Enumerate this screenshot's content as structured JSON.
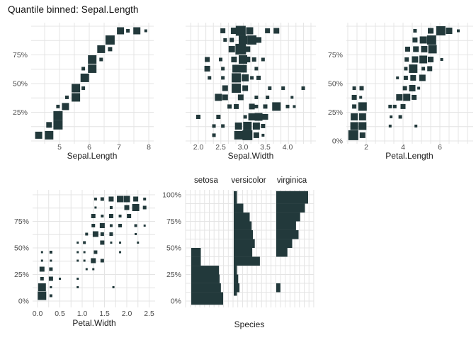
{
  "title": "Quantile binned: Sepal.Length",
  "colors": {
    "marker": "#22393B",
    "grid": "#E4E4E4",
    "tick_text": "#4D4D4D",
    "axis_text": "#1A1A1A",
    "background": "#FFFFFF"
  },
  "chart_data": [
    {
      "type": "scatter",
      "note": "points are [x_value, sepal_length_quantile_pct, marker_size_px]; marker size encodes bin count",
      "xlabel": "Sepal.Length",
      "x_tick_labels": [
        "5",
        "6",
        "7",
        "8"
      ],
      "x_tick_values": [
        5,
        6,
        7,
        8
      ],
      "y_tick_labels": [
        "25%",
        "50%",
        "75%"
      ],
      "y_tick_values": [
        25,
        50,
        75
      ],
      "x_range": [
        4.3,
        7.9
      ],
      "y_range_pct": [
        0,
        100
      ],
      "points": [
        [
          4.3,
          5,
          10
        ],
        [
          4.65,
          5,
          12
        ],
        [
          4.65,
          14,
          8
        ],
        [
          4.95,
          14,
          13
        ],
        [
          4.95,
          22,
          13
        ],
        [
          4.95,
          30,
          5
        ],
        [
          5.2,
          30,
          10
        ],
        [
          5.25,
          38,
          5
        ],
        [
          5.55,
          38,
          12
        ],
        [
          5.55,
          46,
          12
        ],
        [
          5.8,
          46,
          5
        ],
        [
          5.85,
          55,
          12
        ],
        [
          5.8,
          63,
          5
        ],
        [
          6.1,
          63,
          12
        ],
        [
          6.1,
          71,
          12
        ],
        [
          6.4,
          71,
          5
        ],
        [
          6.4,
          80,
          11
        ],
        [
          6.7,
          80,
          6
        ],
        [
          6.7,
          88,
          13
        ],
        [
          7.05,
          96,
          10
        ],
        [
          7.3,
          96,
          5
        ],
        [
          7.6,
          96,
          10
        ],
        [
          7.9,
          96,
          4
        ]
      ]
    },
    {
      "type": "scatter",
      "xlabel": "Sepal.Width",
      "x_tick_labels": [
        "2.0",
        "2.5",
        "3.0",
        "3.5",
        "4.0"
      ],
      "x_tick_values": [
        2.0,
        2.5,
        3.0,
        3.5,
        4.0
      ],
      "y_tick_labels": [],
      "y_tick_values": [],
      "x_range": [
        2.0,
        4.4
      ],
      "y_range_pct": [
        0,
        100
      ],
      "points": [
        [
          2.35,
          5,
          5
        ],
        [
          2.9,
          5,
          12
        ],
        [
          3.1,
          5,
          14
        ],
        [
          3.3,
          5,
          8
        ],
        [
          3.45,
          5,
          4
        ],
        [
          2.35,
          13,
          5
        ],
        [
          2.55,
          13,
          5
        ],
        [
          2.9,
          13,
          10
        ],
        [
          3.1,
          13,
          12
        ],
        [
          3.3,
          13,
          10
        ],
        [
          3.45,
          13,
          6
        ],
        [
          2.0,
          21,
          6
        ],
        [
          2.45,
          21,
          6
        ],
        [
          3.05,
          21,
          5
        ],
        [
          3.2,
          21,
          10
        ],
        [
          3.35,
          21,
          11
        ],
        [
          3.5,
          21,
          8
        ],
        [
          2.7,
          30,
          6
        ],
        [
          2.85,
          30,
          7
        ],
        [
          3.2,
          30,
          8
        ],
        [
          3.3,
          30,
          5
        ],
        [
          3.5,
          30,
          6
        ],
        [
          3.75,
          30,
          12
        ],
        [
          4.0,
          30,
          5
        ],
        [
          4.15,
          30,
          4
        ],
        [
          2.45,
          38,
          10
        ],
        [
          2.6,
          38,
          8
        ],
        [
          2.95,
          38,
          8
        ],
        [
          3.3,
          38,
          5
        ],
        [
          3.55,
          38,
          5
        ],
        [
          4.1,
          38,
          4
        ],
        [
          2.6,
          46,
          8
        ],
        [
          2.85,
          46,
          13
        ],
        [
          3.05,
          46,
          8
        ],
        [
          3.6,
          46,
          5
        ],
        [
          3.9,
          46,
          5
        ],
        [
          4.35,
          46,
          5
        ],
        [
          2.25,
          55,
          5
        ],
        [
          2.55,
          55,
          5
        ],
        [
          2.85,
          55,
          13
        ],
        [
          3.05,
          55,
          10
        ],
        [
          3.2,
          55,
          5
        ],
        [
          3.35,
          55,
          6
        ],
        [
          2.2,
          63,
          8
        ],
        [
          2.55,
          63,
          5
        ],
        [
          2.85,
          63,
          11
        ],
        [
          3.0,
          63,
          11
        ],
        [
          3.3,
          63,
          5
        ],
        [
          2.2,
          71,
          7
        ],
        [
          2.5,
          71,
          5
        ],
        [
          2.8,
          71,
          8
        ],
        [
          3.0,
          71,
          12
        ],
        [
          3.1,
          71,
          8
        ],
        [
          3.25,
          71,
          6
        ],
        [
          3.45,
          71,
          5
        ],
        [
          2.75,
          80,
          9
        ],
        [
          2.95,
          80,
          15
        ],
        [
          3.1,
          80,
          8
        ],
        [
          2.6,
          88,
          5
        ],
        [
          2.75,
          88,
          6
        ],
        [
          3.0,
          88,
          12
        ],
        [
          3.2,
          88,
          13
        ],
        [
          3.35,
          88,
          8
        ],
        [
          2.55,
          96,
          7
        ],
        [
          2.8,
          96,
          9
        ],
        [
          2.95,
          96,
          14
        ],
        [
          3.15,
          96,
          10
        ],
        [
          3.55,
          96,
          7
        ],
        [
          3.75,
          96,
          8
        ]
      ]
    },
    {
      "type": "scatter",
      "xlabel": "Petal.Length",
      "x_tick_labels": [
        "2",
        "4",
        "6"
      ],
      "x_tick_values": [
        2,
        4,
        6
      ],
      "y_tick_labels": [
        "0%",
        "25%",
        "50%",
        "75%"
      ],
      "y_tick_values": [
        0,
        25,
        50,
        75
      ],
      "x_range": [
        1.0,
        6.9
      ],
      "y_range_pct": [
        0,
        100
      ],
      "points": [
        [
          1.3,
          5,
          14
        ],
        [
          1.8,
          5,
          8
        ],
        [
          1.35,
          13,
          11
        ],
        [
          1.8,
          13,
          11
        ],
        [
          1.35,
          21,
          10
        ],
        [
          1.8,
          21,
          10
        ],
        [
          1.35,
          30,
          6
        ],
        [
          1.8,
          30,
          12
        ],
        [
          1.35,
          38,
          7
        ],
        [
          1.7,
          38,
          4
        ],
        [
          1.35,
          46,
          5
        ],
        [
          1.75,
          46,
          6
        ],
        [
          3.3,
          13,
          4
        ],
        [
          4.7,
          13,
          4
        ],
        [
          3.35,
          21,
          4
        ],
        [
          3.85,
          21,
          5
        ],
        [
          3.3,
          30,
          5
        ],
        [
          3.55,
          30,
          5
        ],
        [
          4.0,
          30,
          7
        ],
        [
          3.8,
          38,
          9
        ],
        [
          4.2,
          38,
          10
        ],
        [
          4.6,
          38,
          7
        ],
        [
          4.1,
          46,
          6
        ],
        [
          4.5,
          46,
          9
        ],
        [
          4.85,
          46,
          4
        ],
        [
          3.7,
          55,
          4
        ],
        [
          4.15,
          55,
          6
        ],
        [
          4.55,
          55,
          8
        ],
        [
          5.05,
          55,
          9
        ],
        [
          4.15,
          63,
          5
        ],
        [
          4.55,
          63,
          12
        ],
        [
          5.1,
          63,
          5
        ],
        [
          5.45,
          63,
          7
        ],
        [
          4.2,
          71,
          6
        ],
        [
          4.65,
          71,
          9
        ],
        [
          5.1,
          71,
          11
        ],
        [
          5.5,
          71,
          8
        ],
        [
          6.1,
          71,
          4
        ],
        [
          4.25,
          80,
          7
        ],
        [
          4.7,
          80,
          8
        ],
        [
          5.15,
          80,
          9
        ],
        [
          5.6,
          80,
          12
        ],
        [
          4.65,
          88,
          7
        ],
        [
          5.1,
          88,
          10
        ],
        [
          5.55,
          88,
          13
        ],
        [
          4.65,
          96,
          5
        ],
        [
          5.5,
          96,
          8
        ],
        [
          6.05,
          96,
          13
        ],
        [
          6.5,
          96,
          9
        ],
        [
          7.0,
          96,
          4
        ]
      ]
    },
    {
      "type": "scatter",
      "xlabel": "Petal.Width",
      "x_tick_labels": [
        "0.0",
        "0.5",
        "1.0",
        "1.5",
        "2.0",
        "2.5"
      ],
      "x_tick_values": [
        0.0,
        0.5,
        1.0,
        1.5,
        2.0,
        2.5
      ],
      "y_tick_labels": [
        "0%",
        "25%",
        "50%",
        "75%"
      ],
      "y_tick_values": [
        0,
        25,
        50,
        75
      ],
      "x_range": [
        0.1,
        2.5
      ],
      "y_range_pct": [
        0,
        100
      ],
      "points": [
        [
          0.1,
          5,
          12
        ],
        [
          0.3,
          5,
          4
        ],
        [
          0.1,
          13,
          11
        ],
        [
          0.3,
          13,
          3
        ],
        [
          0.9,
          13,
          3
        ],
        [
          1.7,
          13,
          3
        ],
        [
          0.1,
          21,
          5
        ],
        [
          0.3,
          21,
          6
        ],
        [
          0.5,
          21,
          3
        ],
        [
          0.9,
          21,
          3
        ],
        [
          0.1,
          30,
          7
        ],
        [
          0.3,
          30,
          5
        ],
        [
          1.1,
          30,
          3
        ],
        [
          1.25,
          30,
          3
        ],
        [
          0.1,
          38,
          3
        ],
        [
          0.3,
          38,
          3
        ],
        [
          0.9,
          38,
          3
        ],
        [
          1.05,
          38,
          3
        ],
        [
          1.25,
          38,
          7
        ],
        [
          1.45,
          38,
          5
        ],
        [
          0.1,
          46,
          3
        ],
        [
          0.3,
          46,
          4
        ],
        [
          0.9,
          46,
          3
        ],
        [
          1.05,
          46,
          3
        ],
        [
          1.3,
          46,
          5
        ],
        [
          1.85,
          46,
          3
        ],
        [
          0.9,
          55,
          3
        ],
        [
          1.05,
          55,
          4
        ],
        [
          1.45,
          55,
          6
        ],
        [
          1.65,
          55,
          3
        ],
        [
          1.85,
          55,
          3
        ],
        [
          2.25,
          55,
          3
        ],
        [
          1.1,
          63,
          4
        ],
        [
          1.3,
          63,
          8
        ],
        [
          1.45,
          63,
          5
        ],
        [
          1.65,
          63,
          5
        ],
        [
          2.2,
          63,
          3
        ],
        [
          1.25,
          71,
          5
        ],
        [
          1.45,
          71,
          7
        ],
        [
          1.65,
          71,
          4
        ],
        [
          1.85,
          71,
          5
        ],
        [
          2.2,
          71,
          4
        ],
        [
          2.4,
          71,
          3
        ],
        [
          1.25,
          80,
          6
        ],
        [
          1.45,
          80,
          4
        ],
        [
          1.65,
          80,
          6
        ],
        [
          1.85,
          80,
          4
        ],
        [
          2.05,
          80,
          6
        ],
        [
          1.3,
          88,
          3
        ],
        [
          1.65,
          88,
          4
        ],
        [
          2.0,
          88,
          7
        ],
        [
          2.2,
          88,
          10
        ],
        [
          2.4,
          88,
          5
        ],
        [
          1.3,
          96,
          4
        ],
        [
          1.45,
          96,
          5
        ],
        [
          1.65,
          96,
          7
        ],
        [
          1.85,
          96,
          9
        ],
        [
          2.0,
          96,
          9
        ],
        [
          2.2,
          96,
          7
        ],
        [
          2.4,
          96,
          4
        ]
      ]
    },
    {
      "type": "bar",
      "note": "horizontal bar histograms per species; bars are [quantile_pct_from, quantile_pct_to, width_fraction_of_column]",
      "xlabel": "Species",
      "categories": [
        "setosa",
        "versicolor",
        "virginica"
      ],
      "y_tick_labels": [
        "0%",
        "25%",
        "50%",
        "75%",
        "100%"
      ],
      "y_tick_values": [
        0,
        25,
        50,
        75,
        100
      ],
      "bin_height_pct": 8.33,
      "series": [
        {
          "name": "setosa",
          "bars": [
            [
              -3.5,
              8.3,
              1.0
            ],
            [
              8.3,
              16.7,
              0.93
            ],
            [
              16.7,
              25,
              0.89
            ],
            [
              25,
              33.3,
              0.87
            ],
            [
              33.3,
              41.7,
              0.3
            ],
            [
              41.7,
              50,
              0.3
            ]
          ]
        },
        {
          "name": "versicolor",
          "bars": [
            [
              5,
              8.3,
              0.1
            ],
            [
              8.3,
              16.7,
              0.18
            ],
            [
              16.7,
              25,
              0.14
            ],
            [
              25,
              33.3,
              0.1
            ],
            [
              33.3,
              41.7,
              0.82
            ],
            [
              41.7,
              50,
              0.58
            ],
            [
              50,
              58.3,
              0.66
            ],
            [
              58.3,
              66.7,
              0.6
            ],
            [
              66.7,
              75,
              0.56
            ],
            [
              75,
              83.3,
              0.5
            ],
            [
              83.3,
              91.7,
              0.3
            ],
            [
              91.7,
              103.5,
              0.1
            ]
          ]
        },
        {
          "name": "virginica",
          "bars": [
            [
              8.3,
              16.7,
              0.13
            ],
            [
              41.7,
              50,
              0.35
            ],
            [
              50,
              58.3,
              0.5
            ],
            [
              58.3,
              66.7,
              0.7
            ],
            [
              66.7,
              75,
              0.62
            ],
            [
              75,
              83.3,
              0.75
            ],
            [
              83.3,
              91.7,
              0.9
            ],
            [
              91.7,
              103.5,
              1.0
            ]
          ]
        }
      ]
    }
  ]
}
